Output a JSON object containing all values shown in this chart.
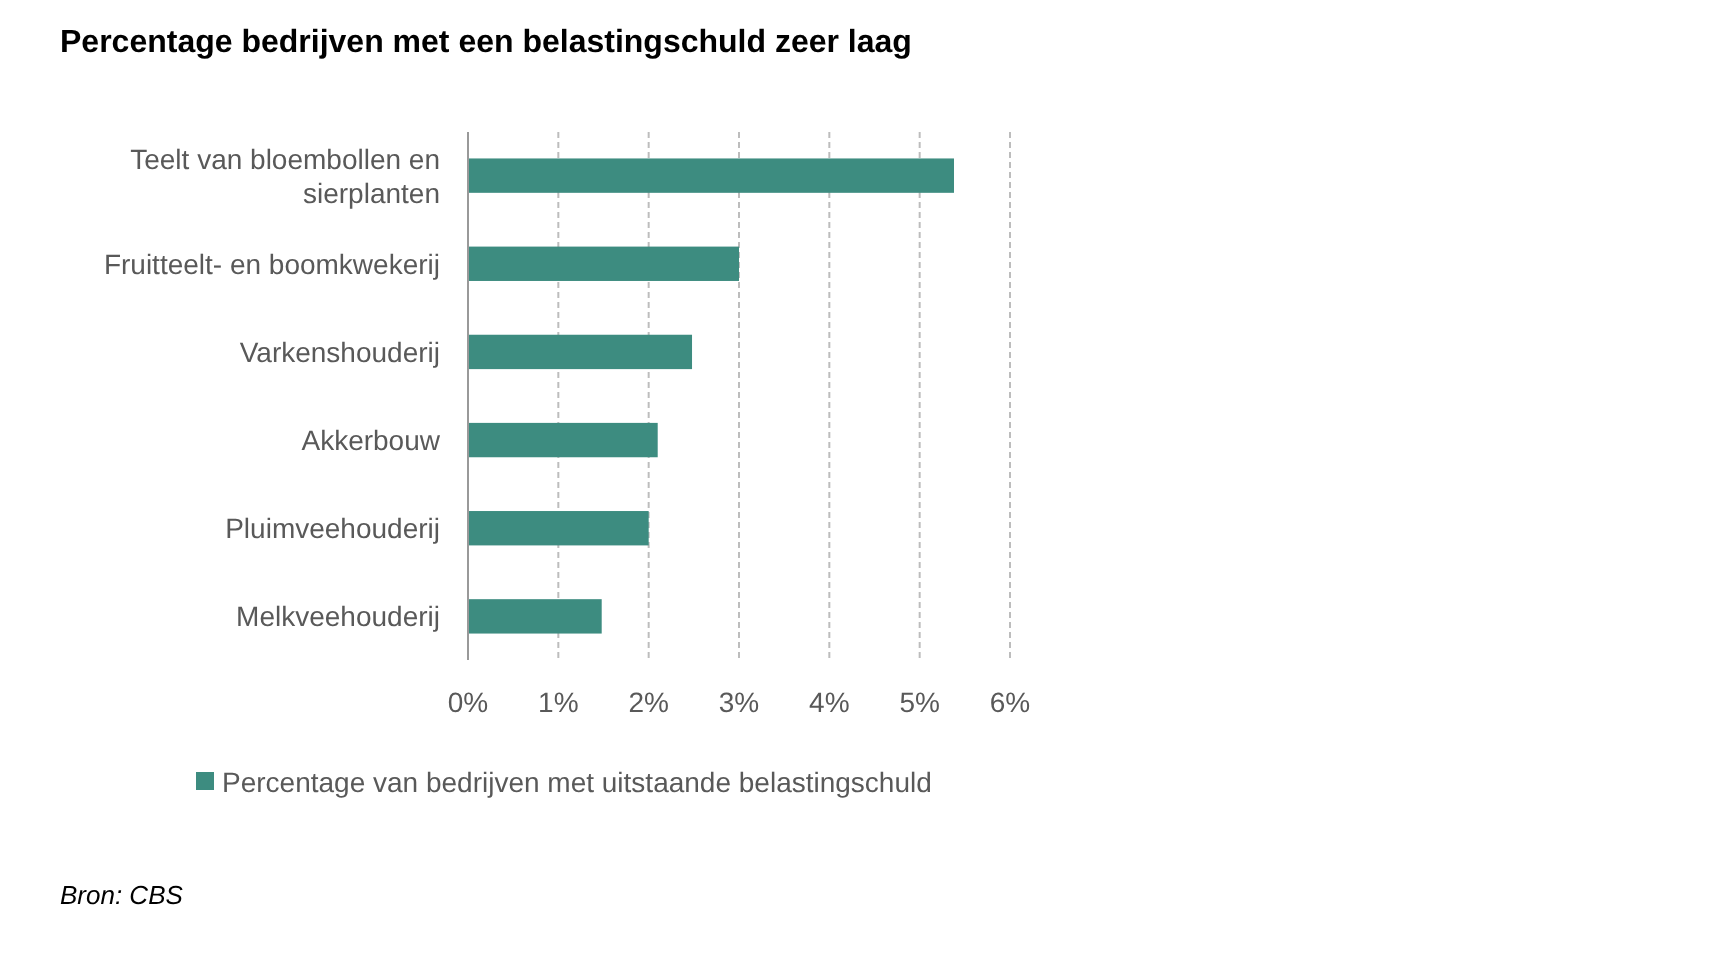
{
  "chart_data": {
    "type": "bar",
    "orientation": "horizontal",
    "title": "Percentage bedrijven met een belastingschuld zeer laag",
    "categories": [
      "Teelt van bloembollen en sierplanten",
      "Fruitteelt- en boomkwekerij",
      "Varkenshouderij",
      "Akkerbouw",
      "Pluimveehouderij",
      "Melkveehouderij"
    ],
    "series": [
      {
        "name": "Percentage van bedrijven met uitstaande belastingschuld",
        "color": "#3d8c80",
        "values": [
          5.38,
          3.0,
          2.48,
          2.1,
          2.0,
          1.48
        ]
      }
    ],
    "xlim": [
      0,
      6
    ],
    "xticks": [
      {
        "value": 0,
        "label": "0%"
      },
      {
        "value": 1,
        "label": "1%"
      },
      {
        "value": 2,
        "label": "2%"
      },
      {
        "value": 3,
        "label": "3%"
      },
      {
        "value": 4,
        "label": "4%"
      },
      {
        "value": 5,
        "label": "5%"
      },
      {
        "value": 6,
        "label": "6%"
      }
    ],
    "grid": "x",
    "legend": "bottom",
    "annotations": [
      "Bron: CBS"
    ]
  }
}
